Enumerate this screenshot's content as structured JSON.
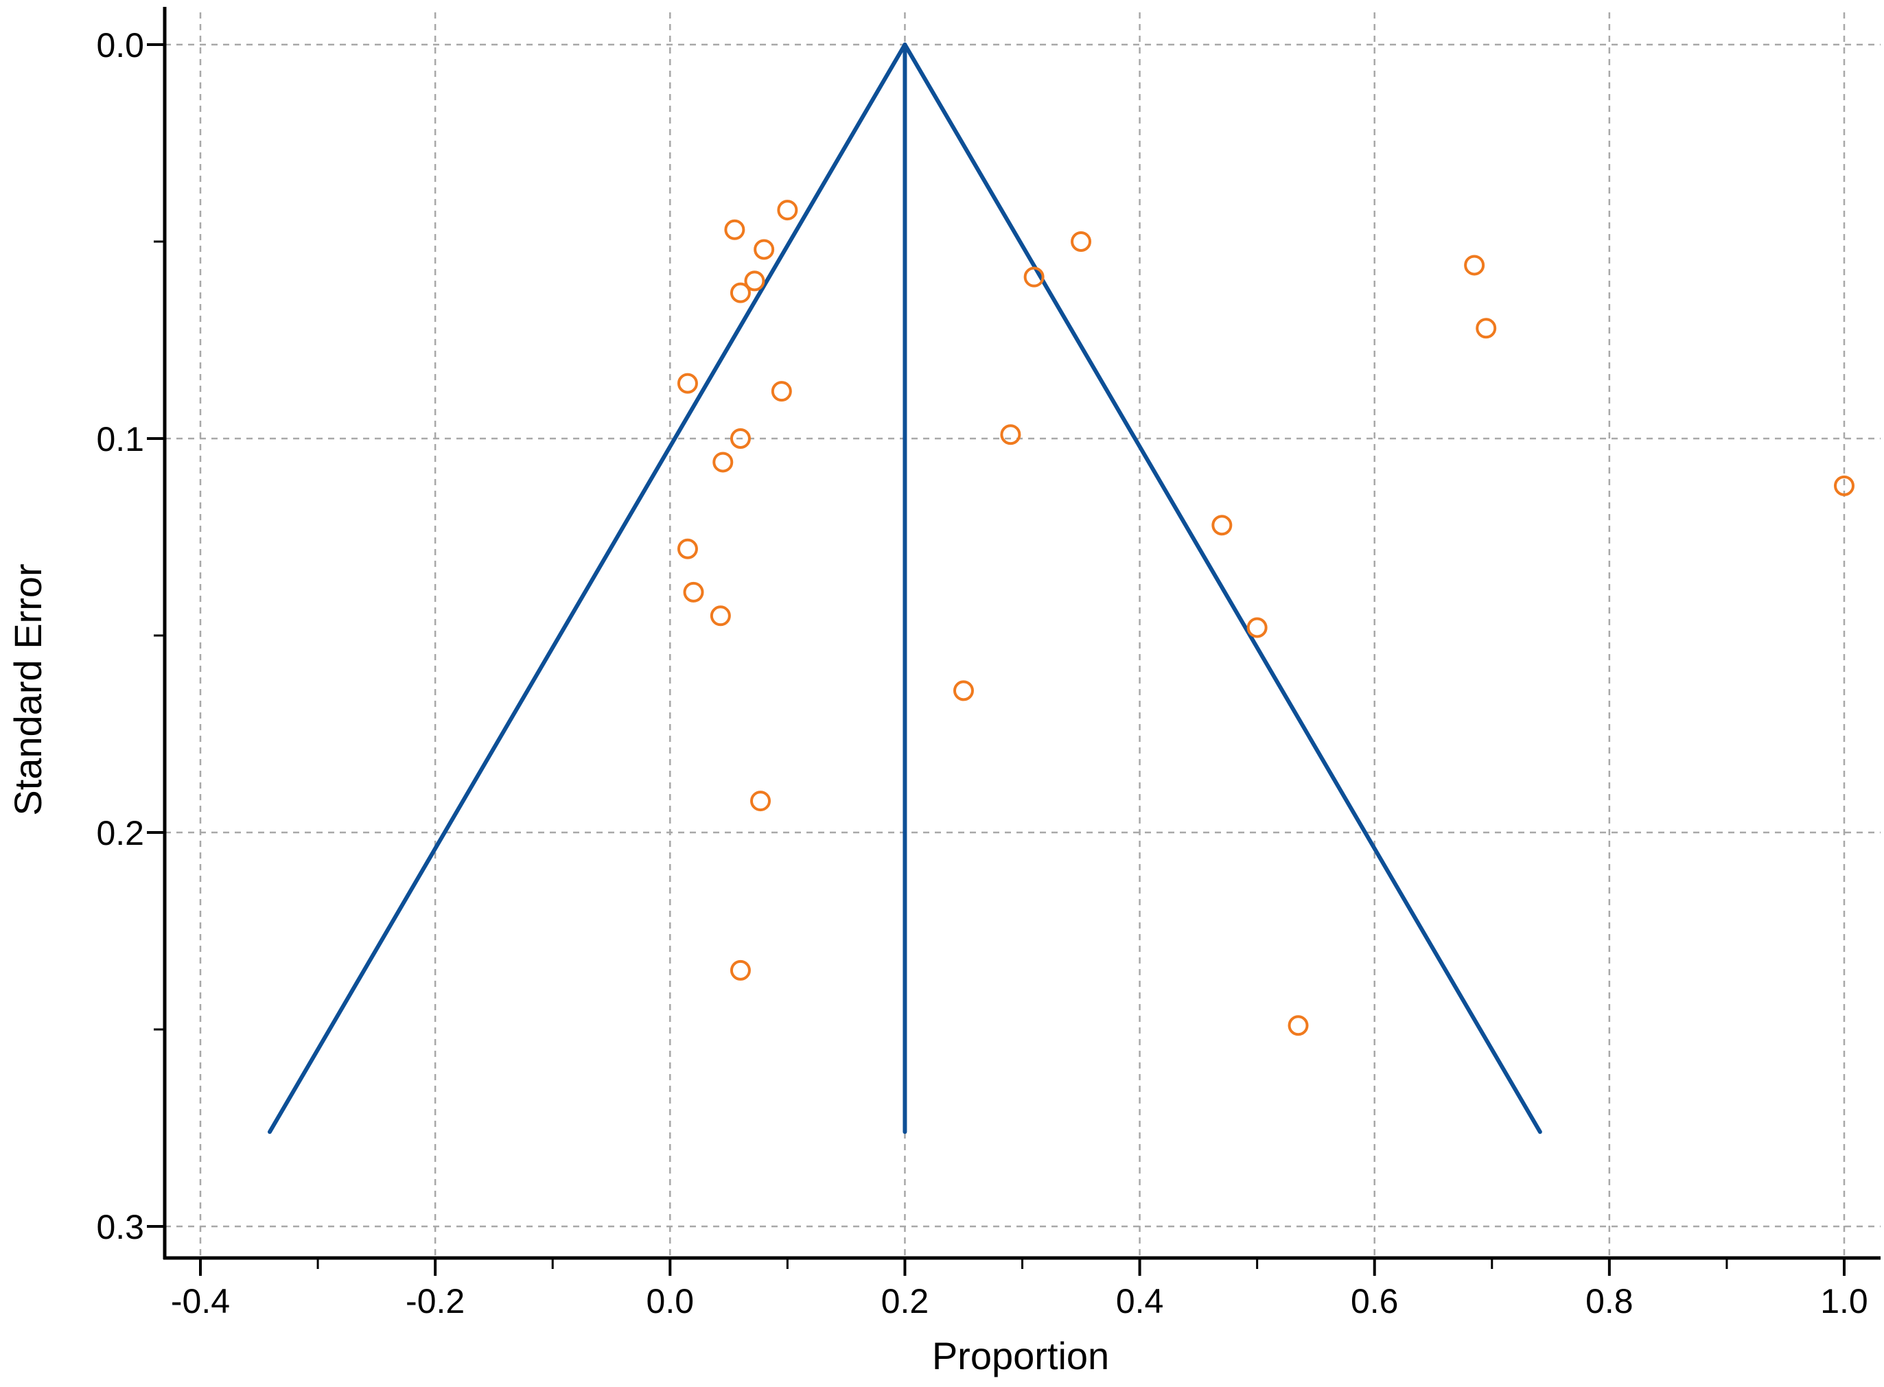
{
  "chart_data": {
    "type": "scatter",
    "title": "",
    "xlabel": "Proportion",
    "ylabel": "Standard Error",
    "xlim": [
      -0.4,
      1.0
    ],
    "ylim": [
      0.0,
      0.3
    ],
    "y_inverted": true,
    "x_ticks": [
      -0.4,
      -0.2,
      0.0,
      0.2,
      0.4,
      0.6,
      0.8,
      1.0
    ],
    "x_tick_labels": [
      "-0.4",
      "-0.2",
      "0.0",
      "0.2",
      "0.4",
      "0.6",
      "0.8",
      "1.0"
    ],
    "x_minor_ticks": [
      -0.3,
      -0.1,
      0.1,
      0.3,
      0.5,
      0.7,
      0.9
    ],
    "y_ticks": [
      0.0,
      0.1,
      0.2,
      0.3
    ],
    "y_tick_labels": [
      "0.0",
      "0.1",
      "0.2",
      "0.3"
    ],
    "y_minor_ticks": [
      0.05,
      0.15,
      0.25
    ],
    "grid": true,
    "pooled_estimate": 0.2,
    "funnel_se_max": 0.276,
    "funnel_z": 1.96,
    "funnel_color": "#0d4f96",
    "marker_color": "#f07a1e",
    "points": [
      {
        "x": 0.1,
        "y": 0.042
      },
      {
        "x": 0.055,
        "y": 0.047
      },
      {
        "x": 0.08,
        "y": 0.052
      },
      {
        "x": 0.072,
        "y": 0.06
      },
      {
        "x": 0.06,
        "y": 0.063
      },
      {
        "x": 0.35,
        "y": 0.05
      },
      {
        "x": 0.31,
        "y": 0.059
      },
      {
        "x": 0.685,
        "y": 0.056
      },
      {
        "x": 0.695,
        "y": 0.072
      },
      {
        "x": 0.015,
        "y": 0.086
      },
      {
        "x": 0.095,
        "y": 0.088
      },
      {
        "x": 0.06,
        "y": 0.1
      },
      {
        "x": 0.045,
        "y": 0.106
      },
      {
        "x": 0.29,
        "y": 0.099
      },
      {
        "x": 1.0,
        "y": 0.112
      },
      {
        "x": 0.47,
        "y": 0.122
      },
      {
        "x": 0.015,
        "y": 0.128
      },
      {
        "x": 0.02,
        "y": 0.139
      },
      {
        "x": 0.043,
        "y": 0.145
      },
      {
        "x": 0.5,
        "y": 0.148
      },
      {
        "x": 0.25,
        "y": 0.164
      },
      {
        "x": 0.077,
        "y": 0.192
      },
      {
        "x": 0.06,
        "y": 0.235
      },
      {
        "x": 0.535,
        "y": 0.249
      }
    ]
  }
}
